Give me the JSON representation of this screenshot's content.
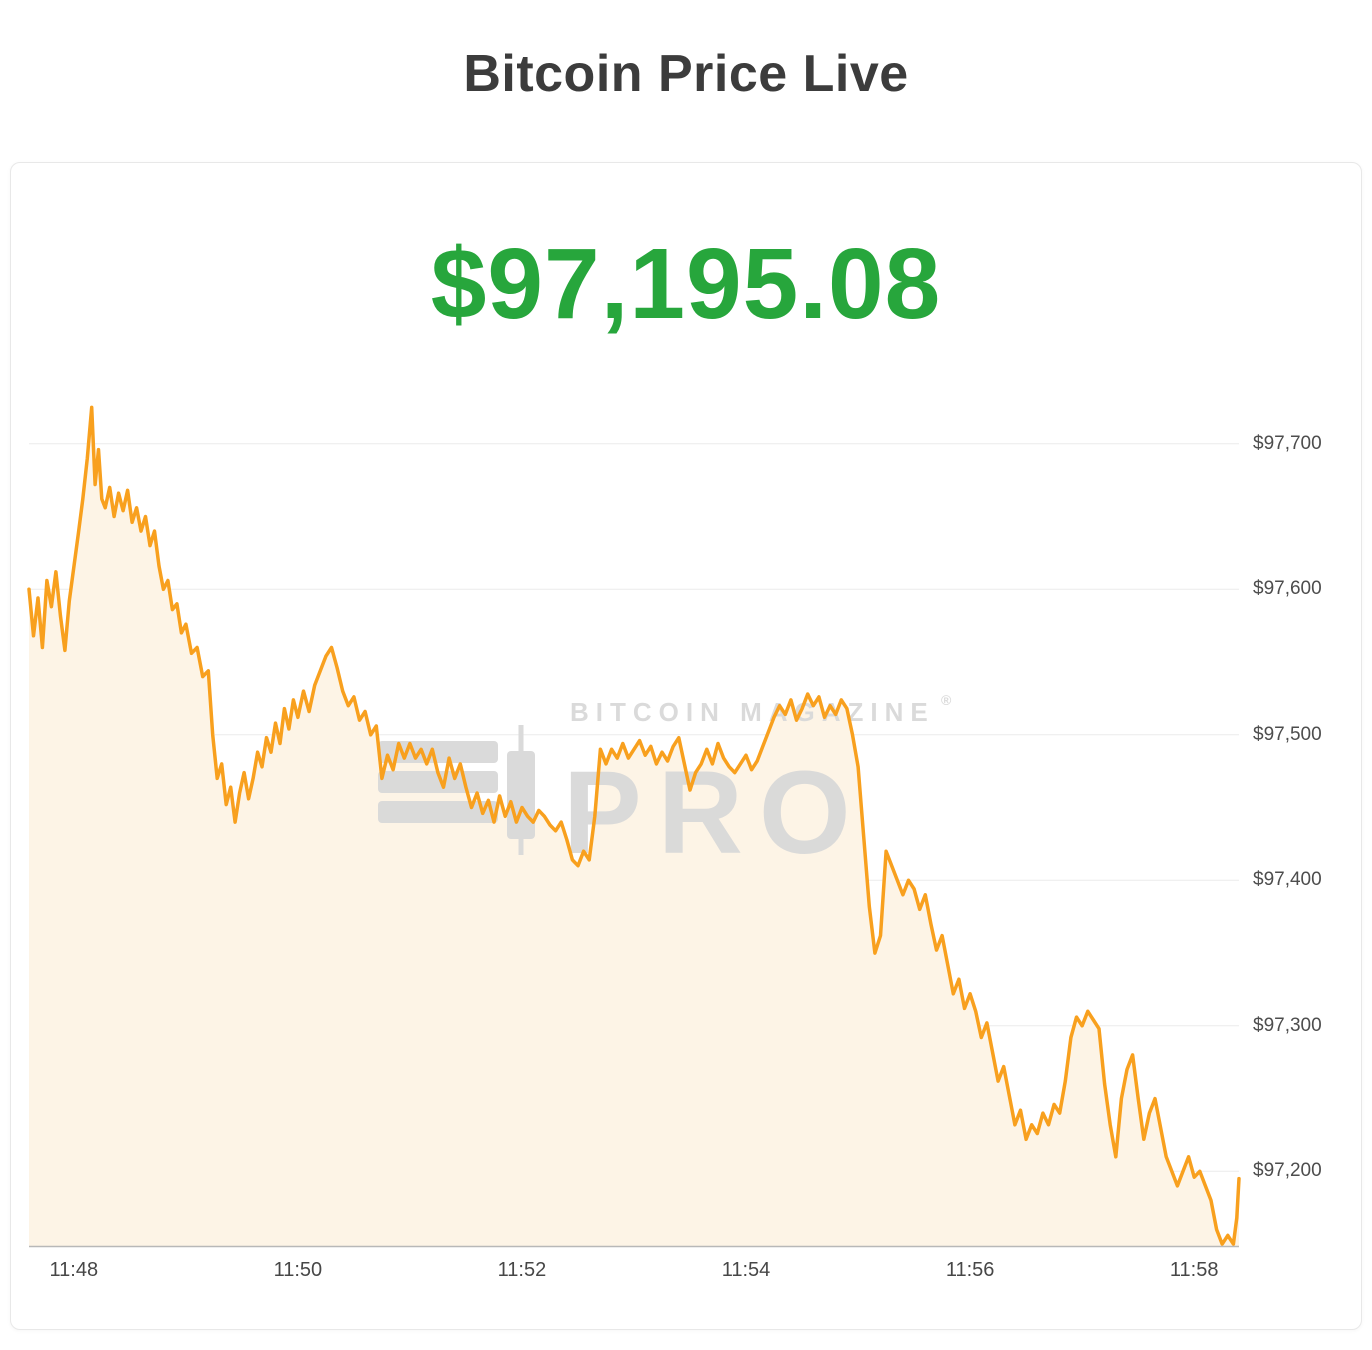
{
  "page": {
    "title": "Bitcoin Price Live"
  },
  "card": {
    "price": "$97,195.08"
  },
  "watermark": {
    "line1": "BITCOIN MAGAZINE",
    "reg": "®",
    "line2": "PRO",
    "color": "#d9d9d9"
  },
  "chart_data": {
    "type": "area",
    "title": "Bitcoin Price Live",
    "current_price_label": "$97,195.08",
    "ylabel": "",
    "xlabel": "",
    "x_tick_labels": [
      "11:48",
      "11:50",
      "11:52",
      "11:54",
      "11:56",
      "11:58"
    ],
    "x_tick_minutes": [
      0,
      2,
      4,
      6,
      8,
      10
    ],
    "y_tick_labels": [
      "$97,700",
      "$97,600",
      "$97,500",
      "$97,400",
      "$97,300",
      "$97,200"
    ],
    "y_tick_values": [
      97700,
      97600,
      97500,
      97400,
      97300,
      97200
    ],
    "x_domain_minutes": [
      -0.4,
      10.4
    ],
    "y_domain": [
      97148,
      97728
    ],
    "grid": true,
    "legend": "none",
    "line_color": "#F8A01E",
    "fill_color": "#FDF4E6",
    "grid_color": "#ECECEC",
    "axis_color": "#B8B8B8",
    "points": [
      [
        -0.4,
        97600
      ],
      [
        -0.36,
        97568
      ],
      [
        -0.32,
        97594
      ],
      [
        -0.28,
        97560
      ],
      [
        -0.24,
        97606
      ],
      [
        -0.2,
        97588
      ],
      [
        -0.16,
        97612
      ],
      [
        -0.12,
        97582
      ],
      [
        -0.08,
        97558
      ],
      [
        -0.04,
        97592
      ],
      [
        0.0,
        97615
      ],
      [
        0.04,
        97638
      ],
      [
        0.08,
        97662
      ],
      [
        0.12,
        97690
      ],
      [
        0.16,
        97725
      ],
      [
        0.19,
        97672
      ],
      [
        0.22,
        97696
      ],
      [
        0.25,
        97662
      ],
      [
        0.28,
        97656
      ],
      [
        0.32,
        97670
      ],
      [
        0.36,
        97650
      ],
      [
        0.4,
        97666
      ],
      [
        0.44,
        97654
      ],
      [
        0.48,
        97668
      ],
      [
        0.52,
        97646
      ],
      [
        0.56,
        97656
      ],
      [
        0.6,
        97640
      ],
      [
        0.64,
        97650
      ],
      [
        0.68,
        97630
      ],
      [
        0.72,
        97640
      ],
      [
        0.76,
        97616
      ],
      [
        0.8,
        97600
      ],
      [
        0.84,
        97606
      ],
      [
        0.88,
        97586
      ],
      [
        0.92,
        97590
      ],
      [
        0.96,
        97570
      ],
      [
        1.0,
        97576
      ],
      [
        1.05,
        97556
      ],
      [
        1.1,
        97560
      ],
      [
        1.15,
        97540
      ],
      [
        1.2,
        97544
      ],
      [
        1.24,
        97500
      ],
      [
        1.28,
        97470
      ],
      [
        1.32,
        97480
      ],
      [
        1.36,
        97452
      ],
      [
        1.4,
        97464
      ],
      [
        1.44,
        97440
      ],
      [
        1.48,
        97460
      ],
      [
        1.52,
        97474
      ],
      [
        1.56,
        97456
      ],
      [
        1.6,
        97470
      ],
      [
        1.64,
        97488
      ],
      [
        1.68,
        97478
      ],
      [
        1.72,
        97498
      ],
      [
        1.76,
        97488
      ],
      [
        1.8,
        97508
      ],
      [
        1.84,
        97494
      ],
      [
        1.88,
        97518
      ],
      [
        1.92,
        97504
      ],
      [
        1.96,
        97524
      ],
      [
        2.0,
        97512
      ],
      [
        2.05,
        97530
      ],
      [
        2.1,
        97516
      ],
      [
        2.15,
        97534
      ],
      [
        2.2,
        97544
      ],
      [
        2.25,
        97554
      ],
      [
        2.3,
        97560
      ],
      [
        2.35,
        97546
      ],
      [
        2.4,
        97530
      ],
      [
        2.45,
        97520
      ],
      [
        2.5,
        97526
      ],
      [
        2.55,
        97510
      ],
      [
        2.6,
        97516
      ],
      [
        2.65,
        97500
      ],
      [
        2.7,
        97506
      ],
      [
        2.75,
        97470
      ],
      [
        2.8,
        97486
      ],
      [
        2.85,
        97476
      ],
      [
        2.9,
        97494
      ],
      [
        2.95,
        97484
      ],
      [
        3.0,
        97494
      ],
      [
        3.05,
        97484
      ],
      [
        3.1,
        97490
      ],
      [
        3.15,
        97480
      ],
      [
        3.2,
        97490
      ],
      [
        3.25,
        97474
      ],
      [
        3.3,
        97464
      ],
      [
        3.35,
        97484
      ],
      [
        3.4,
        97470
      ],
      [
        3.45,
        97480
      ],
      [
        3.5,
        97464
      ],
      [
        3.55,
        97450
      ],
      [
        3.6,
        97460
      ],
      [
        3.65,
        97446
      ],
      [
        3.7,
        97455
      ],
      [
        3.75,
        97440
      ],
      [
        3.8,
        97458
      ],
      [
        3.85,
        97444
      ],
      [
        3.9,
        97454
      ],
      [
        3.95,
        97440
      ],
      [
        4.0,
        97450
      ],
      [
        4.05,
        97444
      ],
      [
        4.1,
        97440
      ],
      [
        4.15,
        97448
      ],
      [
        4.2,
        97444
      ],
      [
        4.25,
        97438
      ],
      [
        4.3,
        97434
      ],
      [
        4.35,
        97440
      ],
      [
        4.4,
        97428
      ],
      [
        4.45,
        97414
      ],
      [
        4.5,
        97410
      ],
      [
        4.55,
        97420
      ],
      [
        4.6,
        97414
      ],
      [
        4.65,
        97444
      ],
      [
        4.7,
        97490
      ],
      [
        4.75,
        97480
      ],
      [
        4.8,
        97490
      ],
      [
        4.85,
        97484
      ],
      [
        4.9,
        97494
      ],
      [
        4.95,
        97484
      ],
      [
        5.0,
        97490
      ],
      [
        5.05,
        97496
      ],
      [
        5.1,
        97486
      ],
      [
        5.15,
        97492
      ],
      [
        5.2,
        97480
      ],
      [
        5.25,
        97488
      ],
      [
        5.3,
        97482
      ],
      [
        5.35,
        97492
      ],
      [
        5.4,
        97498
      ],
      [
        5.45,
        97480
      ],
      [
        5.5,
        97462
      ],
      [
        5.55,
        97474
      ],
      [
        5.6,
        97480
      ],
      [
        5.65,
        97490
      ],
      [
        5.7,
        97480
      ],
      [
        5.75,
        97494
      ],
      [
        5.8,
        97484
      ],
      [
        5.85,
        97478
      ],
      [
        5.9,
        97474
      ],
      [
        5.95,
        97480
      ],
      [
        6.0,
        97486
      ],
      [
        6.05,
        97476
      ],
      [
        6.1,
        97482
      ],
      [
        6.15,
        97492
      ],
      [
        6.2,
        97502
      ],
      [
        6.25,
        97512
      ],
      [
        6.3,
        97520
      ],
      [
        6.35,
        97514
      ],
      [
        6.4,
        97524
      ],
      [
        6.45,
        97510
      ],
      [
        6.5,
        97518
      ],
      [
        6.55,
        97528
      ],
      [
        6.6,
        97520
      ],
      [
        6.65,
        97526
      ],
      [
        6.7,
        97512
      ],
      [
        6.75,
        97520
      ],
      [
        6.8,
        97514
      ],
      [
        6.85,
        97524
      ],
      [
        6.9,
        97518
      ],
      [
        6.95,
        97500
      ],
      [
        7.0,
        97478
      ],
      [
        7.05,
        97430
      ],
      [
        7.1,
        97382
      ],
      [
        7.15,
        97350
      ],
      [
        7.2,
        97362
      ],
      [
        7.25,
        97420
      ],
      [
        7.3,
        97410
      ],
      [
        7.35,
        97400
      ],
      [
        7.4,
        97390
      ],
      [
        7.45,
        97400
      ],
      [
        7.5,
        97394
      ],
      [
        7.55,
        97380
      ],
      [
        7.6,
        97390
      ],
      [
        7.65,
        97370
      ],
      [
        7.7,
        97352
      ],
      [
        7.75,
        97362
      ],
      [
        7.8,
        97342
      ],
      [
        7.85,
        97322
      ],
      [
        7.9,
        97332
      ],
      [
        7.95,
        97312
      ],
      [
        8.0,
        97322
      ],
      [
        8.05,
        97310
      ],
      [
        8.1,
        97292
      ],
      [
        8.15,
        97302
      ],
      [
        8.2,
        97282
      ],
      [
        8.25,
        97262
      ],
      [
        8.3,
        97272
      ],
      [
        8.35,
        97252
      ],
      [
        8.4,
        97232
      ],
      [
        8.45,
        97242
      ],
      [
        8.5,
        97222
      ],
      [
        8.55,
        97232
      ],
      [
        8.6,
        97226
      ],
      [
        8.65,
        97240
      ],
      [
        8.7,
        97232
      ],
      [
        8.75,
        97246
      ],
      [
        8.8,
        97240
      ],
      [
        8.85,
        97262
      ],
      [
        8.9,
        97292
      ],
      [
        8.95,
        97306
      ],
      [
        9.0,
        97300
      ],
      [
        9.05,
        97310
      ],
      [
        9.1,
        97304
      ],
      [
        9.15,
        97298
      ],
      [
        9.2,
        97260
      ],
      [
        9.25,
        97232
      ],
      [
        9.3,
        97210
      ],
      [
        9.35,
        97250
      ],
      [
        9.4,
        97270
      ],
      [
        9.45,
        97280
      ],
      [
        9.5,
        97250
      ],
      [
        9.55,
        97222
      ],
      [
        9.6,
        97240
      ],
      [
        9.65,
        97250
      ],
      [
        9.7,
        97230
      ],
      [
        9.75,
        97210
      ],
      [
        9.8,
        97200
      ],
      [
        9.85,
        97190
      ],
      [
        9.9,
        97200
      ],
      [
        9.95,
        97210
      ],
      [
        10.0,
        97196
      ],
      [
        10.05,
        97200
      ],
      [
        10.1,
        97190
      ],
      [
        10.15,
        97180
      ],
      [
        10.2,
        97160
      ],
      [
        10.25,
        97150
      ],
      [
        10.3,
        97156
      ],
      [
        10.35,
        97150
      ],
      [
        10.38,
        97168
      ],
      [
        10.4,
        97195
      ]
    ]
  }
}
